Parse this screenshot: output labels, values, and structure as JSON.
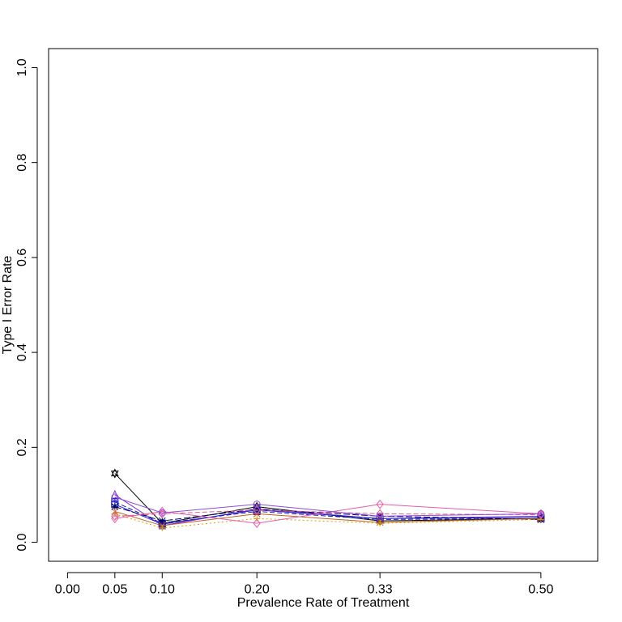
{
  "chart_data": {
    "type": "line",
    "title": "",
    "xlabel": "Prevalence Rate of Treatment",
    "ylabel": "Type I Error Rate",
    "xlim": [
      -0.02,
      0.56
    ],
    "ylim": [
      -0.04,
      1.04
    ],
    "x_ticks": [
      0.0,
      0.05,
      0.1,
      0.2,
      0.33,
      0.5
    ],
    "x_tick_labels": [
      "0.00",
      "0.05",
      "0.10",
      "0.20",
      "0.33",
      "0.50"
    ],
    "y_ticks": [
      0.0,
      0.2,
      0.4,
      0.6,
      0.8,
      1.0
    ],
    "y_tick_labels": [
      "0.0",
      "0.2",
      "0.4",
      "0.6",
      "0.8",
      "1.0"
    ],
    "grid": false,
    "legend": "none",
    "x": [
      0.05,
      0.1,
      0.2,
      0.33,
      0.5
    ],
    "series": [
      {
        "values": [
          0.145,
          0.04,
          0.075,
          0.045,
          0.05
        ],
        "color": "#000000",
        "dash": "",
        "marker": "star"
      },
      {
        "values": [
          0.1,
          0.035,
          0.07,
          0.05,
          0.055
        ],
        "color": "#7b2fd0",
        "dash": "",
        "marker": "triangle"
      },
      {
        "values": [
          0.085,
          0.04,
          0.065,
          0.048,
          0.05
        ],
        "color": "#1c1cb0",
        "dash": "6,3",
        "marker": "boxplus"
      },
      {
        "values": [
          0.08,
          0.038,
          0.068,
          0.05,
          0.052
        ],
        "color": "#2222cc",
        "dash": "",
        "marker": "square"
      },
      {
        "values": [
          0.075,
          0.045,
          0.07,
          0.055,
          0.048
        ],
        "color": "#000066",
        "dash": "8,3",
        "marker": "asterisk"
      },
      {
        "values": [
          0.065,
          0.035,
          0.06,
          0.042,
          0.05
        ],
        "color": "#c06020",
        "dash": "",
        "marker": "x"
      },
      {
        "values": [
          0.06,
          0.03,
          0.05,
          0.04,
          0.048
        ],
        "color": "#d4a000",
        "dash": "2,3",
        "marker": "plus"
      },
      {
        "values": [
          0.055,
          0.06,
          0.068,
          0.06,
          0.058
        ],
        "color": "#e0608a",
        "dash": "6,3",
        "marker": "diamond"
      },
      {
        "values": [
          0.05,
          0.065,
          0.04,
          0.08,
          0.06
        ],
        "color": "#e55ca8",
        "dash": "",
        "marker": "diamond"
      },
      {
        "values": [
          0.095,
          0.062,
          0.08,
          0.055,
          0.06
        ],
        "color": "#8a4fd8",
        "dash": "",
        "marker": "circle"
      }
    ]
  }
}
